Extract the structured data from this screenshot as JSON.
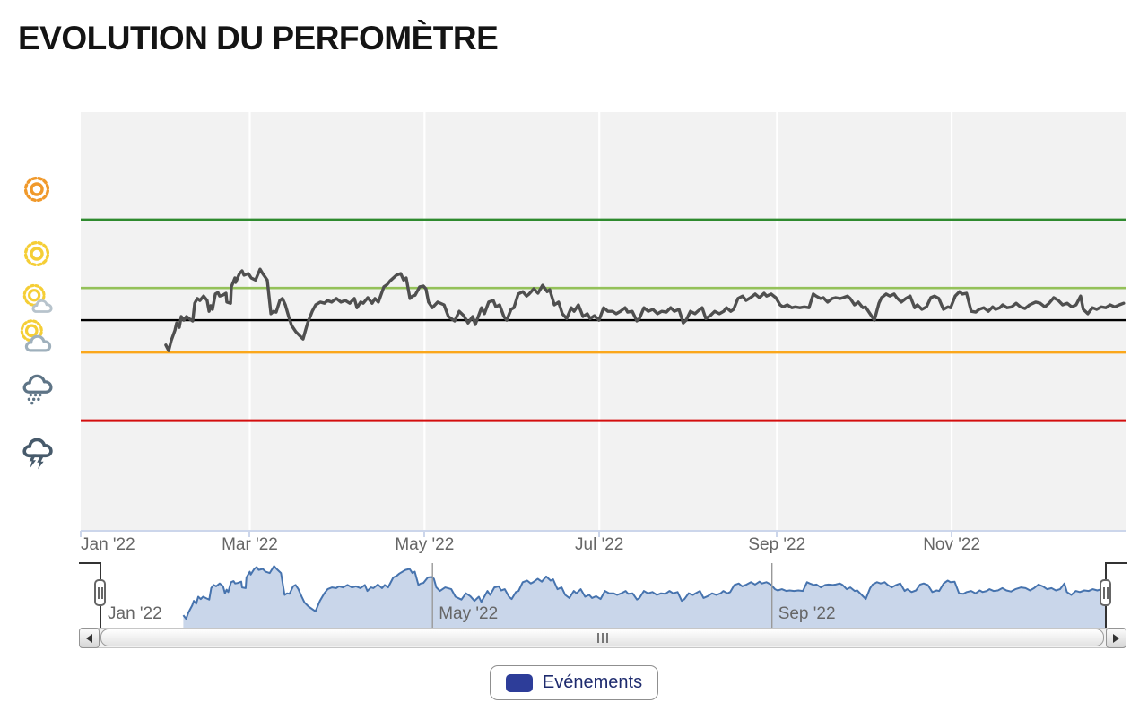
{
  "title": "EVOLUTION DU PERFOMÈTRE",
  "chart_data": {
    "type": "line",
    "title": "EVOLUTION DU PERFOMÈTRE",
    "x_unit": "days since 2022-01-01",
    "xlabel": "",
    "ylabel": "",
    "ylim": [
      0,
      100
    ],
    "grid": true,
    "x_ticks": [
      {
        "day": 0,
        "label": "Jan '22"
      },
      {
        "day": 59,
        "label": "Mar '22"
      },
      {
        "day": 120,
        "label": "May '22"
      },
      {
        "day": 181,
        "label": "Jul '22"
      },
      {
        "day": 243,
        "label": "Sep '22"
      },
      {
        "day": 304,
        "label": "Nov '22"
      }
    ],
    "y_axis_icon_labels": [
      "sun-bright",
      "sun",
      "sun-small-cloud",
      "sun-behind-cloud",
      "rain-cloud",
      "storm-cloud"
    ],
    "plot_lines": [
      {
        "value": 75,
        "color": "#2E8A2E",
        "width": 3
      },
      {
        "value": 58,
        "color": "#94C159",
        "width": 2.6
      },
      {
        "value": 50,
        "color": "#000000",
        "width": 2.4
      },
      {
        "value": 42,
        "color": "#FBA71B",
        "width": 3
      },
      {
        "value": 25,
        "color": "#D40E0E",
        "width": 3
      }
    ],
    "series": [
      {
        "color": "#4F4F4F",
        "points": [
          [
            29.7,
            43.8
          ],
          [
            30.7,
            42.4
          ],
          [
            31.6,
            44.9
          ],
          [
            32.9,
            47.5
          ],
          [
            33.5,
            49.3
          ],
          [
            34.4,
            48.2
          ],
          [
            35.1,
            50.9
          ],
          [
            36,
            50
          ],
          [
            36.9,
            50.9
          ],
          [
            38.2,
            50.2
          ],
          [
            39.1,
            49.8
          ],
          [
            39.8,
            54.2
          ],
          [
            40.7,
            55.4
          ],
          [
            41.6,
            54.9
          ],
          [
            42.9,
            56
          ],
          [
            44.1,
            54.9
          ],
          [
            44.8,
            52.2
          ],
          [
            45.4,
            53.6
          ],
          [
            46,
            52.7
          ],
          [
            47,
            56.5
          ],
          [
            47.9,
            56.9
          ],
          [
            48.5,
            56
          ],
          [
            49.5,
            56.2
          ],
          [
            50.7,
            56.7
          ],
          [
            51,
            54.5
          ],
          [
            52.3,
            54.2
          ],
          [
            52.6,
            58.3
          ],
          [
            53.8,
            60.5
          ],
          [
            54.1,
            59.4
          ],
          [
            55.4,
            61.6
          ],
          [
            56.3,
            62.3
          ],
          [
            57,
            61.2
          ],
          [
            58.5,
            61.6
          ],
          [
            59.5,
            60.5
          ],
          [
            61,
            60
          ],
          [
            62.6,
            62.7
          ],
          [
            63.5,
            61.6
          ],
          [
            65.1,
            60
          ],
          [
            66.4,
            51.6
          ],
          [
            67.3,
            52.2
          ],
          [
            68.2,
            52
          ],
          [
            69.5,
            54.9
          ],
          [
            70.4,
            55.4
          ],
          [
            71.4,
            53.8
          ],
          [
            72.6,
            50.9
          ],
          [
            73.6,
            48.7
          ],
          [
            75.1,
            47.1
          ],
          [
            77.3,
            45.5
          ],
          [
            77.6,
            45.3
          ],
          [
            79.2,
            49.3
          ],
          [
            80.8,
            52.2
          ],
          [
            82,
            53.8
          ],
          [
            83.6,
            54.5
          ],
          [
            85.1,
            54.2
          ],
          [
            86.1,
            54.9
          ],
          [
            87.6,
            54.5
          ],
          [
            89.2,
            55.4
          ],
          [
            90.8,
            54.5
          ],
          [
            92.3,
            54.9
          ],
          [
            93.9,
            54.2
          ],
          [
            95.5,
            55.4
          ],
          [
            96.4,
            53.1
          ],
          [
            97.7,
            54.5
          ],
          [
            98.6,
            54.2
          ],
          [
            100.2,
            55.6
          ],
          [
            101.7,
            54.2
          ],
          [
            102.7,
            55.4
          ],
          [
            103.9,
            54.5
          ],
          [
            105.8,
            58.3
          ],
          [
            107,
            58.9
          ],
          [
            108,
            59.8
          ],
          [
            110.2,
            61.2
          ],
          [
            111.7,
            61.6
          ],
          [
            112.7,
            60
          ],
          [
            113.6,
            60.5
          ],
          [
            114.9,
            55.4
          ],
          [
            115.8,
            56
          ],
          [
            116.7,
            56.2
          ],
          [
            118.3,
            58.3
          ],
          [
            119.6,
            58.5
          ],
          [
            120.5,
            57.8
          ],
          [
            121.4,
            54.5
          ],
          [
            122.7,
            53.1
          ],
          [
            124.6,
            54.5
          ],
          [
            126.8,
            53.8
          ],
          [
            128.3,
            50.9
          ],
          [
            130.5,
            49.8
          ],
          [
            132.1,
            52.2
          ],
          [
            133.7,
            51.1
          ],
          [
            135.2,
            49.3
          ],
          [
            136.8,
            50.9
          ],
          [
            137.7,
            48.9
          ],
          [
            139.9,
            53.1
          ],
          [
            140.9,
            51.6
          ],
          [
            142.4,
            54.5
          ],
          [
            144,
            54.9
          ],
          [
            144.9,
            53.3
          ],
          [
            146.2,
            53.8
          ],
          [
            147.7,
            50.9
          ],
          [
            148.7,
            50
          ],
          [
            150.2,
            52.7
          ],
          [
            151.2,
            53.1
          ],
          [
            152.7,
            56.5
          ],
          [
            154.3,
            57.1
          ],
          [
            155.6,
            56
          ],
          [
            156.5,
            56.5
          ],
          [
            158.1,
            57.8
          ],
          [
            159.6,
            56.7
          ],
          [
            161.2,
            58.7
          ],
          [
            162.8,
            57.1
          ],
          [
            163.7,
            57.6
          ],
          [
            165.3,
            53.8
          ],
          [
            166.8,
            54.5
          ],
          [
            168.1,
            51.6
          ],
          [
            169.6,
            50.4
          ],
          [
            171.2,
            53.1
          ],
          [
            172.2,
            52.2
          ],
          [
            173.7,
            53.8
          ],
          [
            175.3,
            50.9
          ],
          [
            176.8,
            51.6
          ],
          [
            177.8,
            50.4
          ],
          [
            179.3,
            51.1
          ],
          [
            180.9,
            50
          ],
          [
            182.5,
            53.1
          ],
          [
            184,
            52.2
          ],
          [
            185.6,
            52.2
          ],
          [
            186.9,
            51.6
          ],
          [
            188.4,
            52.2
          ],
          [
            190,
            53.1
          ],
          [
            190.9,
            52
          ],
          [
            192.5,
            52.2
          ],
          [
            194.1,
            49.8
          ],
          [
            195,
            50.4
          ],
          [
            196.6,
            53.1
          ],
          [
            198.1,
            52.2
          ],
          [
            199.7,
            52.7
          ],
          [
            201.3,
            51.6
          ],
          [
            202.8,
            52.2
          ],
          [
            204.4,
            52
          ],
          [
            205.9,
            53.1
          ],
          [
            207.2,
            52.2
          ],
          [
            208.8,
            52.7
          ],
          [
            210.3,
            49.3
          ],
          [
            211.3,
            50
          ],
          [
            212.8,
            52.2
          ],
          [
            214.4,
            51.6
          ],
          [
            215.3,
            52.2
          ],
          [
            216.9,
            53.1
          ],
          [
            218.2,
            50.4
          ],
          [
            219.7,
            51.1
          ],
          [
            221.3,
            52.2
          ],
          [
            222.9,
            51.6
          ],
          [
            224.4,
            52.2
          ],
          [
            225.4,
            53.1
          ],
          [
            226.9,
            52.2
          ],
          [
            227.9,
            52.7
          ],
          [
            229.4,
            55.4
          ],
          [
            231,
            56
          ],
          [
            232.2,
            54.9
          ],
          [
            233.8,
            55.6
          ],
          [
            235.4,
            56.5
          ],
          [
            236.9,
            55.6
          ],
          [
            238.5,
            56.7
          ],
          [
            239.4,
            56
          ],
          [
            241,
            56.5
          ],
          [
            242.6,
            55.6
          ],
          [
            244.1,
            53.8
          ],
          [
            245.1,
            53.3
          ],
          [
            246.6,
            53.8
          ],
          [
            248.2,
            53.1
          ],
          [
            249.4,
            53.3
          ],
          [
            251,
            53.1
          ],
          [
            252.6,
            53.3
          ],
          [
            254.2,
            53.1
          ],
          [
            255.7,
            56.5
          ],
          [
            256.7,
            56
          ],
          [
            258.2,
            55.4
          ],
          [
            259.2,
            55.6
          ],
          [
            260.7,
            54.5
          ],
          [
            262.3,
            55.4
          ],
          [
            263.5,
            55.6
          ],
          [
            265.1,
            55.4
          ],
          [
            266.1,
            55.6
          ],
          [
            267.6,
            56
          ],
          [
            268.6,
            55.4
          ],
          [
            270.1,
            53.8
          ],
          [
            271.4,
            54.5
          ],
          [
            273,
            53.1
          ],
          [
            273.9,
            53.3
          ],
          [
            277,
            50
          ],
          [
            278.6,
            54.2
          ],
          [
            279.5,
            55.6
          ],
          [
            281.1,
            56.5
          ],
          [
            282.4,
            56
          ],
          [
            283.9,
            56.5
          ],
          [
            284.8,
            55.6
          ],
          [
            286.4,
            54.5
          ],
          [
            288,
            55.4
          ],
          [
            289.5,
            56
          ],
          [
            291.1,
            53.1
          ],
          [
            292,
            53.8
          ],
          [
            293.6,
            52.7
          ],
          [
            295.2,
            53.3
          ],
          [
            296.7,
            55.6
          ],
          [
            298,
            56
          ],
          [
            299.5,
            55.4
          ],
          [
            301.1,
            52.7
          ],
          [
            302.7,
            53.3
          ],
          [
            303.6,
            53.1
          ],
          [
            305.2,
            56
          ],
          [
            306.7,
            57.1
          ],
          [
            307.7,
            56.5
          ],
          [
            309.2,
            56.7
          ],
          [
            310.8,
            52.2
          ],
          [
            312.4,
            52
          ],
          [
            313.6,
            52.7
          ],
          [
            315.2,
            53.1
          ],
          [
            316.8,
            52.2
          ],
          [
            318.3,
            53.3
          ],
          [
            319.3,
            52.7
          ],
          [
            320.8,
            53.1
          ],
          [
            321.8,
            53.8
          ],
          [
            323.3,
            53.1
          ],
          [
            324.9,
            53.3
          ],
          [
            326.5,
            54.2
          ],
          [
            328,
            53.3
          ],
          [
            329.6,
            52.9
          ],
          [
            331.2,
            53.8
          ],
          [
            332.4,
            54.2
          ],
          [
            333.3,
            54.5
          ],
          [
            334.9,
            54.2
          ],
          [
            336.5,
            53.3
          ],
          [
            338,
            54.2
          ],
          [
            339.6,
            55.6
          ],
          [
            341.2,
            54.9
          ],
          [
            342.7,
            53.8
          ],
          [
            344.3,
            54.2
          ],
          [
            345.9,
            53.3
          ],
          [
            347.4,
            53.8
          ],
          [
            349,
            56
          ],
          [
            349.9,
            52.7
          ],
          [
            351.5,
            51.6
          ],
          [
            353.1,
            53.1
          ],
          [
            354.6,
            52.7
          ],
          [
            356.2,
            53.3
          ],
          [
            357.8,
            53.1
          ],
          [
            359.3,
            53.8
          ],
          [
            360.9,
            53.3
          ],
          [
            362.5,
            53.8
          ],
          [
            364,
            54.2
          ]
        ]
      }
    ]
  },
  "navigator": {
    "area_fill": "#C9D6EA",
    "line_color": "#4673AE",
    "labels": [
      {
        "day": 0,
        "label": "Jan '22",
        "gridline": false
      },
      {
        "day": 120,
        "label": "May '22",
        "gridline": true
      },
      {
        "day": 243,
        "label": "Sep '22",
        "gridline": true
      }
    ]
  },
  "legend": {
    "items": [
      {
        "label": "Evénements",
        "color": "#2D3D99"
      }
    ]
  }
}
